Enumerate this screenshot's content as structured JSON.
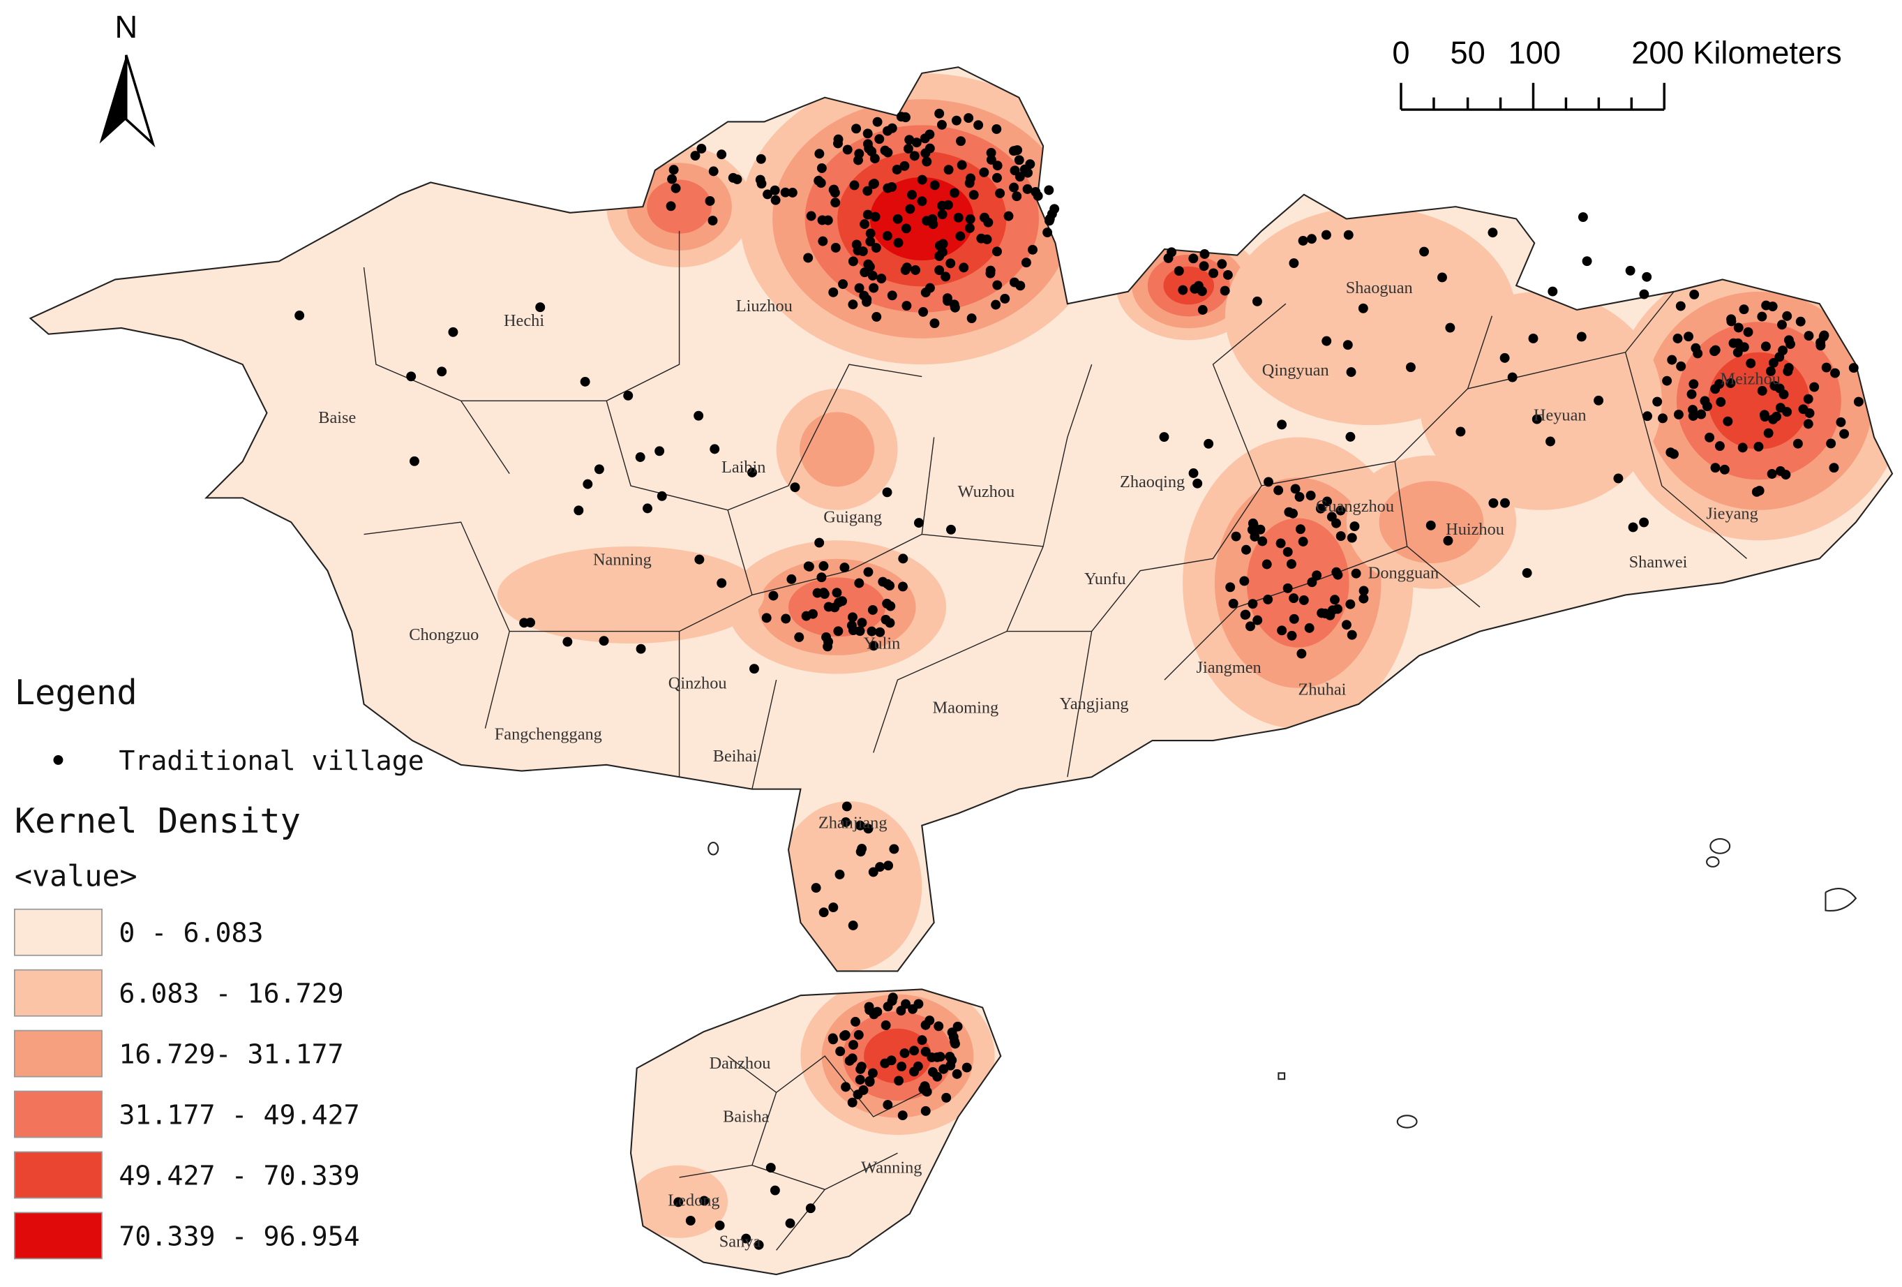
{
  "north_label": "N",
  "scale_bar": {
    "labels": [
      "0",
      "50",
      "100",
      "200 Kilometers"
    ]
  },
  "cities": [
    "Hechi",
    "Liuzhou",
    "Baise",
    "Laibin",
    "Wuzhou",
    "Guigang",
    "Nanning",
    "Chongzuo",
    "Qinzhou",
    "Yulin",
    "Fangchenggang",
    "Beihai",
    "Maoming",
    "Yangjiang",
    "Zhanjiang",
    "Yunfu",
    "Zhaoqing",
    "Qingyuan",
    "Shaoguan",
    "Heyuan",
    "Meizhou",
    "Jieyang",
    "Shanwei",
    "Huizhou",
    "Dongguan",
    "Guangzhou",
    "Jiangmen",
    "Zhuhai",
    "Danzhou",
    "Baisha",
    "Wanning",
    "Ledong",
    "Sanya"
  ],
  "legend": {
    "title": "Legend",
    "point_label": "Traditional village",
    "density_title": "Kernel Density",
    "density_subtitle": "<value>",
    "classes": [
      {
        "label": "0 - 6.083",
        "color": "#fde7d7"
      },
      {
        "label": "6.083 - 16.729",
        "color": "#fbc4a6"
      },
      {
        "label": "16.729- 31.177",
        "color": "#f7a07f"
      },
      {
        "label": "31.177 - 49.427",
        "color": "#f2745a"
      },
      {
        "label": "49.427 - 70.339",
        "color": "#ea4530"
      },
      {
        "label": "70.339 - 96.954",
        "color": "#e00a0a"
      }
    ]
  }
}
